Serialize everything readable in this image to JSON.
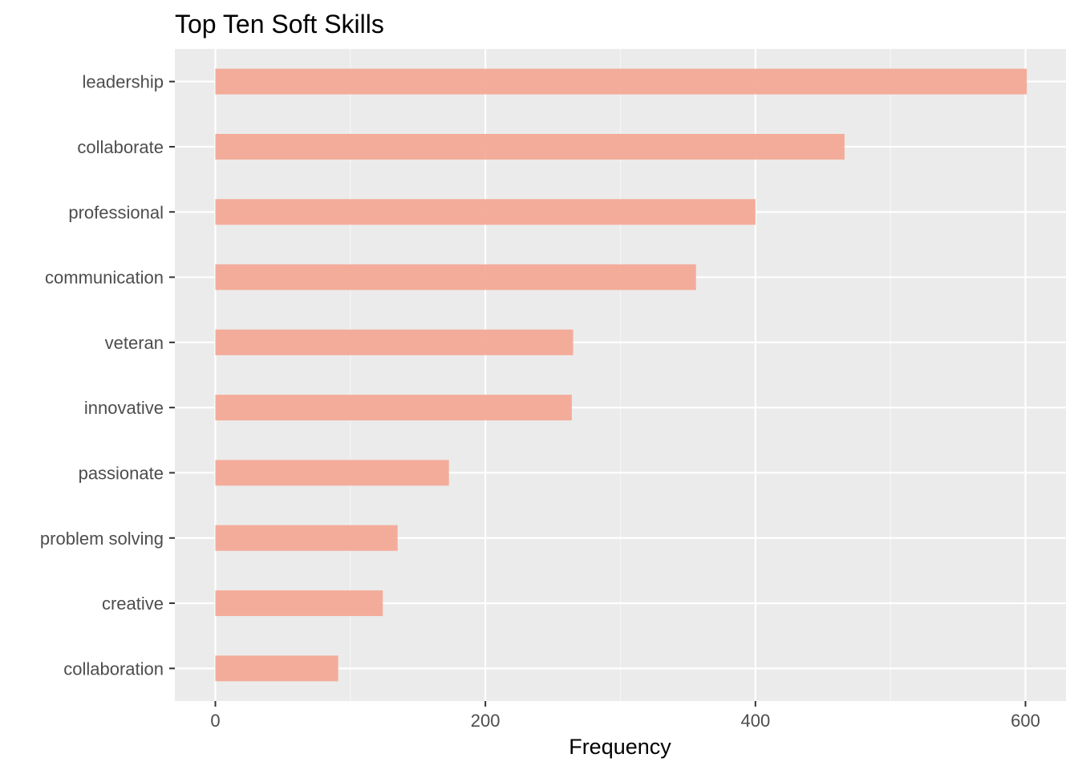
{
  "chart_data": {
    "type": "bar",
    "orientation": "horizontal",
    "title": "Top Ten Soft Skills",
    "xlabel": "Frequency",
    "ylabel": "",
    "categories": [
      "leadership",
      "collaborate",
      "professional",
      "communication",
      "veteran",
      "innovative",
      "passionate",
      "problem solving",
      "creative",
      "collaboration"
    ],
    "values": [
      601,
      466,
      400,
      356,
      265,
      264,
      173,
      135,
      124,
      91
    ],
    "xlim": [
      -30,
      630
    ],
    "xticks": [
      0,
      200,
      400,
      600
    ],
    "grid": true,
    "legend": "none",
    "colors": {
      "bar": "#F4A692",
      "panel_background": "#EBEBEB",
      "grid_major": "#FFFFFF",
      "grid_minor": "#F5F5F5",
      "axis_text": "#4D4D4D",
      "title_text": "#000000",
      "tick_mark": "#333333"
    }
  }
}
